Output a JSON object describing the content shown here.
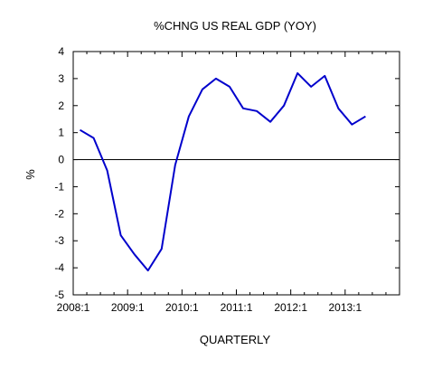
{
  "chart_data": {
    "type": "line",
    "title": "%CHNG US REAL GDP (YOY)",
    "xlabel": "QUARTERLY",
    "ylabel": "%",
    "x_tick_labels": [
      "2008:1",
      "2009:1",
      "2010:1",
      "2011:1",
      "2012:1",
      "2013:1"
    ],
    "y_tick_labels": [
      "4",
      "3",
      "2",
      "1",
      "0",
      "-1",
      "-2",
      "-3",
      "-4",
      "-5"
    ],
    "ylim": [
      -5,
      4
    ],
    "xlim": [
      "2008:1",
      "2013:4"
    ],
    "grid": false,
    "legend": "none",
    "reference_line_y": 0,
    "line_color": "#0000cc",
    "series": [
      {
        "x": [
          "2008:1",
          "2008:2",
          "2008:3",
          "2008:4",
          "2009:1",
          "2009:2",
          "2009:3",
          "2009:4",
          "2010:1",
          "2010:2",
          "2010:3",
          "2010:4",
          "2011:1",
          "2011:2",
          "2011:3",
          "2011:4",
          "2012:1",
          "2012:2",
          "2012:3",
          "2012:4",
          "2013:1",
          "2013:2"
        ],
        "values": [
          1.1,
          0.8,
          -0.4,
          -2.8,
          -3.5,
          -4.1,
          -3.3,
          -0.2,
          1.6,
          2.6,
          3.0,
          2.7,
          1.9,
          1.8,
          1.4,
          2.0,
          3.2,
          2.7,
          3.1,
          1.9,
          1.3,
          1.6
        ]
      }
    ]
  }
}
